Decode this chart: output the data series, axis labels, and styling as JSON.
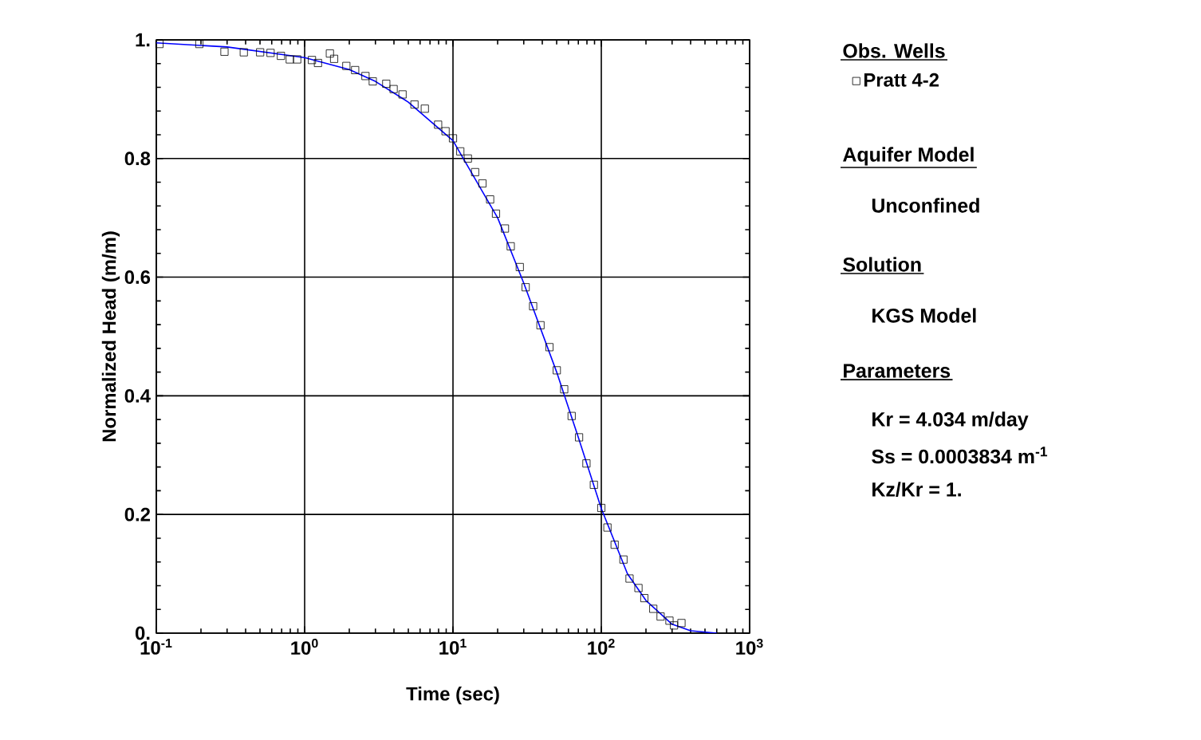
{
  "chart_data": {
    "type": "scatter",
    "xlabel": "Time (sec)",
    "ylabel": "Normalized Head (m/m)",
    "legend_title": "Obs. Wells",
    "series": [
      {
        "name": "Pratt 4-2",
        "color": "#000000",
        "marker": "square",
        "x": [
          0.105,
          0.195,
          0.288,
          0.389,
          0.501,
          0.589,
          0.692,
          0.794,
          0.891,
          1.12,
          1.23,
          1.48,
          1.58,
          1.91,
          2.19,
          2.57,
          2.88,
          3.55,
          3.98,
          4.57,
          5.5,
          6.46,
          7.94,
          8.91,
          10.0,
          11.2,
          12.6,
          14.1,
          15.8,
          17.8,
          19.5,
          22.4,
          24.5,
          28.2,
          30.9,
          34.7,
          38.9,
          44.7,
          50.1,
          56.2,
          63.1,
          70.8,
          79.4,
          89.1,
          100,
          110,
          123,
          141,
          155,
          178,
          195,
          224,
          251,
          288,
          309,
          347
        ],
        "values": [
          0.993,
          0.993,
          0.98,
          0.979,
          0.979,
          0.978,
          0.973,
          0.967,
          0.967,
          0.966,
          0.961,
          0.977,
          0.968,
          0.956,
          0.949,
          0.939,
          0.93,
          0.926,
          0.917,
          0.908,
          0.891,
          0.884,
          0.857,
          0.846,
          0.834,
          0.812,
          0.8,
          0.777,
          0.758,
          0.731,
          0.707,
          0.682,
          0.652,
          0.617,
          0.583,
          0.551,
          0.519,
          0.482,
          0.443,
          0.411,
          0.366,
          0.33,
          0.286,
          0.25,
          0.211,
          0.178,
          0.149,
          0.124,
          0.092,
          0.076,
          0.059,
          0.041,
          0.028,
          0.021,
          0.013,
          0.017
        ]
      },
      {
        "type": "line",
        "color": "#0000ff",
        "marker": "none",
        "line_style": "solid",
        "x": [
          0.1,
          0.3,
          1,
          2,
          3,
          5,
          10,
          20,
          30,
          50,
          70,
          100,
          150,
          200,
          300,
          400,
          600
        ],
        "values": [
          0.995,
          0.988,
          0.97,
          0.95,
          0.93,
          0.895,
          0.83,
          0.7,
          0.59,
          0.44,
          0.33,
          0.21,
          0.1,
          0.055,
          0.015,
          0.004,
          0.0
        ]
      }
    ],
    "xlim": [
      0.1,
      1000
    ],
    "ylim": [
      0,
      1
    ],
    "xticks": [
      {
        "value": 0.1,
        "label": "10$^{-1}$"
      },
      {
        "value": 1,
        "label": "10$^{0}$"
      },
      {
        "value": 10,
        "label": "10$^{1}$"
      },
      {
        "value": 100,
        "label": "10$^{2}$"
      },
      {
        "value": 1000,
        "label": "10$^{3}$"
      }
    ],
    "yticks": [
      {
        "value": 0,
        "label": "0."
      },
      0.2,
      0.4,
      0.6,
      0.8,
      {
        "value": 1,
        "label": "1."
      }
    ],
    "log": "x",
    "grid": true,
    "legend": "right",
    "annotations": [
      "Aquifer Model",
      "Unconfined",
      "Solution",
      "KGS Model",
      "Parameters",
      "Kr = 4.034 m/day",
      "Ss = 0.0003834 m$^{-1}$",
      "Kz/Kr = 1."
    ]
  }
}
